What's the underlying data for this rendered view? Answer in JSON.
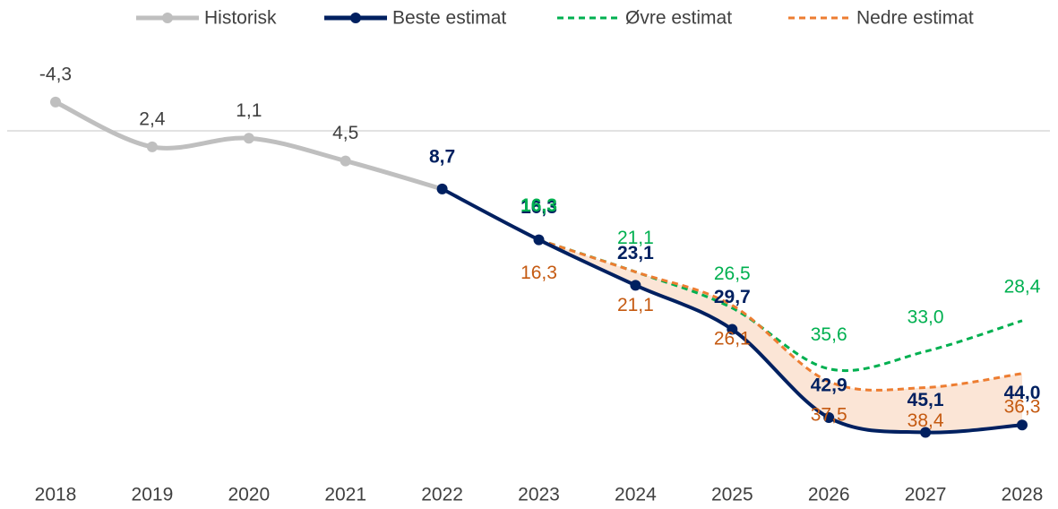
{
  "chart_data": {
    "type": "line",
    "categories": [
      "2018",
      "2019",
      "2020",
      "2021",
      "2022",
      "2023",
      "2024",
      "2025",
      "2026",
      "2027",
      "2028"
    ],
    "ylim": [
      -10,
      50
    ],
    "y_inverted": true,
    "series": [
      {
        "name": "Historisk",
        "color": "#bfbfbf",
        "dashed": false,
        "markers": true,
        "values": [
          -4.3,
          2.4,
          1.1,
          4.5,
          8.7,
          null,
          null,
          null,
          null,
          null,
          null
        ],
        "value_labels": [
          "-4,3",
          "2,4",
          "1,1",
          "4,5",
          null,
          null,
          null,
          null,
          null,
          null,
          null
        ]
      },
      {
        "name": "Beste estimat",
        "color": "#002060",
        "dashed": false,
        "markers": true,
        "values": [
          null,
          null,
          null,
          null,
          8.7,
          16.3,
          23.1,
          29.7,
          42.9,
          45.1,
          44.0
        ],
        "value_labels": [
          null,
          null,
          null,
          null,
          "8,7",
          "16,3",
          "23,1",
          "29,7",
          "42,9",
          "45,1",
          "44,0"
        ]
      },
      {
        "name": "Øvre estimat",
        "color": "#00b050",
        "dashed": true,
        "markers": false,
        "values": [
          null,
          null,
          null,
          null,
          null,
          16.3,
          21.1,
          26.5,
          35.6,
          33.0,
          28.4
        ],
        "value_labels": [
          null,
          null,
          null,
          null,
          null,
          "16,3",
          "21,1",
          "26,5",
          "35,6",
          "33,0",
          "28,4"
        ]
      },
      {
        "name": "Nedre estimat",
        "color": "#ed7d31",
        "dashed": true,
        "markers": false,
        "values": [
          null,
          null,
          null,
          null,
          null,
          16.3,
          21.1,
          26.1,
          37.5,
          38.4,
          36.3
        ],
        "value_labels": [
          null,
          null,
          null,
          null,
          null,
          "16,3",
          "21,1",
          "26,1",
          "37,5",
          "38,4",
          "36,3"
        ]
      }
    ]
  }
}
